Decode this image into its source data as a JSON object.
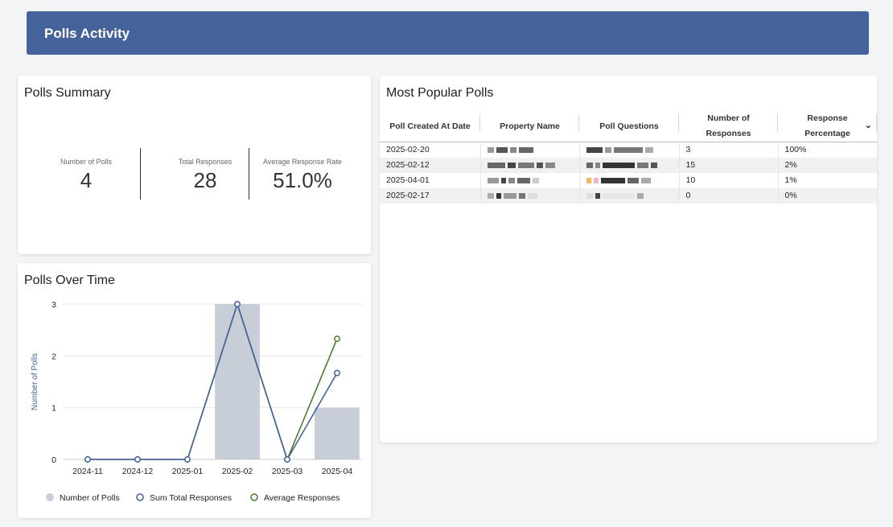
{
  "header": {
    "title": "Polls Activity"
  },
  "summary": {
    "title": "Polls Summary",
    "kpis": [
      {
        "label": "Number of Polls",
        "value": "4"
      },
      {
        "label": "Total Responses",
        "value": "28"
      },
      {
        "label": "Average Response Rate",
        "value": "51.0%"
      }
    ]
  },
  "over_time": {
    "title": "Polls Over Time"
  },
  "chart_data": {
    "type": "bar",
    "categories": [
      "2024-11",
      "2024-12",
      "2025-01",
      "2025-02",
      "2025-03",
      "2025-04"
    ],
    "series": [
      {
        "name": "Number of Polls",
        "type": "bar",
        "values": [
          0,
          0,
          0,
          3,
          0,
          1
        ],
        "color": "#c8ced8"
      },
      {
        "name": "Sum Total Responses",
        "type": "line",
        "values": [
          0,
          0,
          0,
          3,
          0,
          1.67
        ],
        "color": "#46629b"
      },
      {
        "name": "Average Responses",
        "type": "line",
        "values": [
          0,
          0,
          0,
          3,
          0,
          2.33
        ],
        "color": "#4a7c2f"
      }
    ],
    "ylabel": "Number of Polls",
    "ylim": [
      0,
      3
    ],
    "yticks": [
      "0",
      "1",
      "2",
      "3"
    ],
    "grid": true,
    "legend": "bottom"
  },
  "popular": {
    "title": "Most Popular Polls",
    "columns": [
      "Poll Created At Date",
      "Property Name",
      "Poll Questions",
      "Number of Responses",
      "Response Percentage"
    ],
    "rows": [
      {
        "date": "2025-02-20",
        "responses": "3",
        "percent": "100%"
      },
      {
        "date": "2025-02-12",
        "responses": "15",
        "percent": "2%"
      },
      {
        "date": "2025-04-01",
        "responses": "10",
        "percent": "1%"
      },
      {
        "date": "2025-02-17",
        "responses": "0",
        "percent": "0%"
      }
    ],
    "sort_icon": "chevron-down-icon"
  }
}
